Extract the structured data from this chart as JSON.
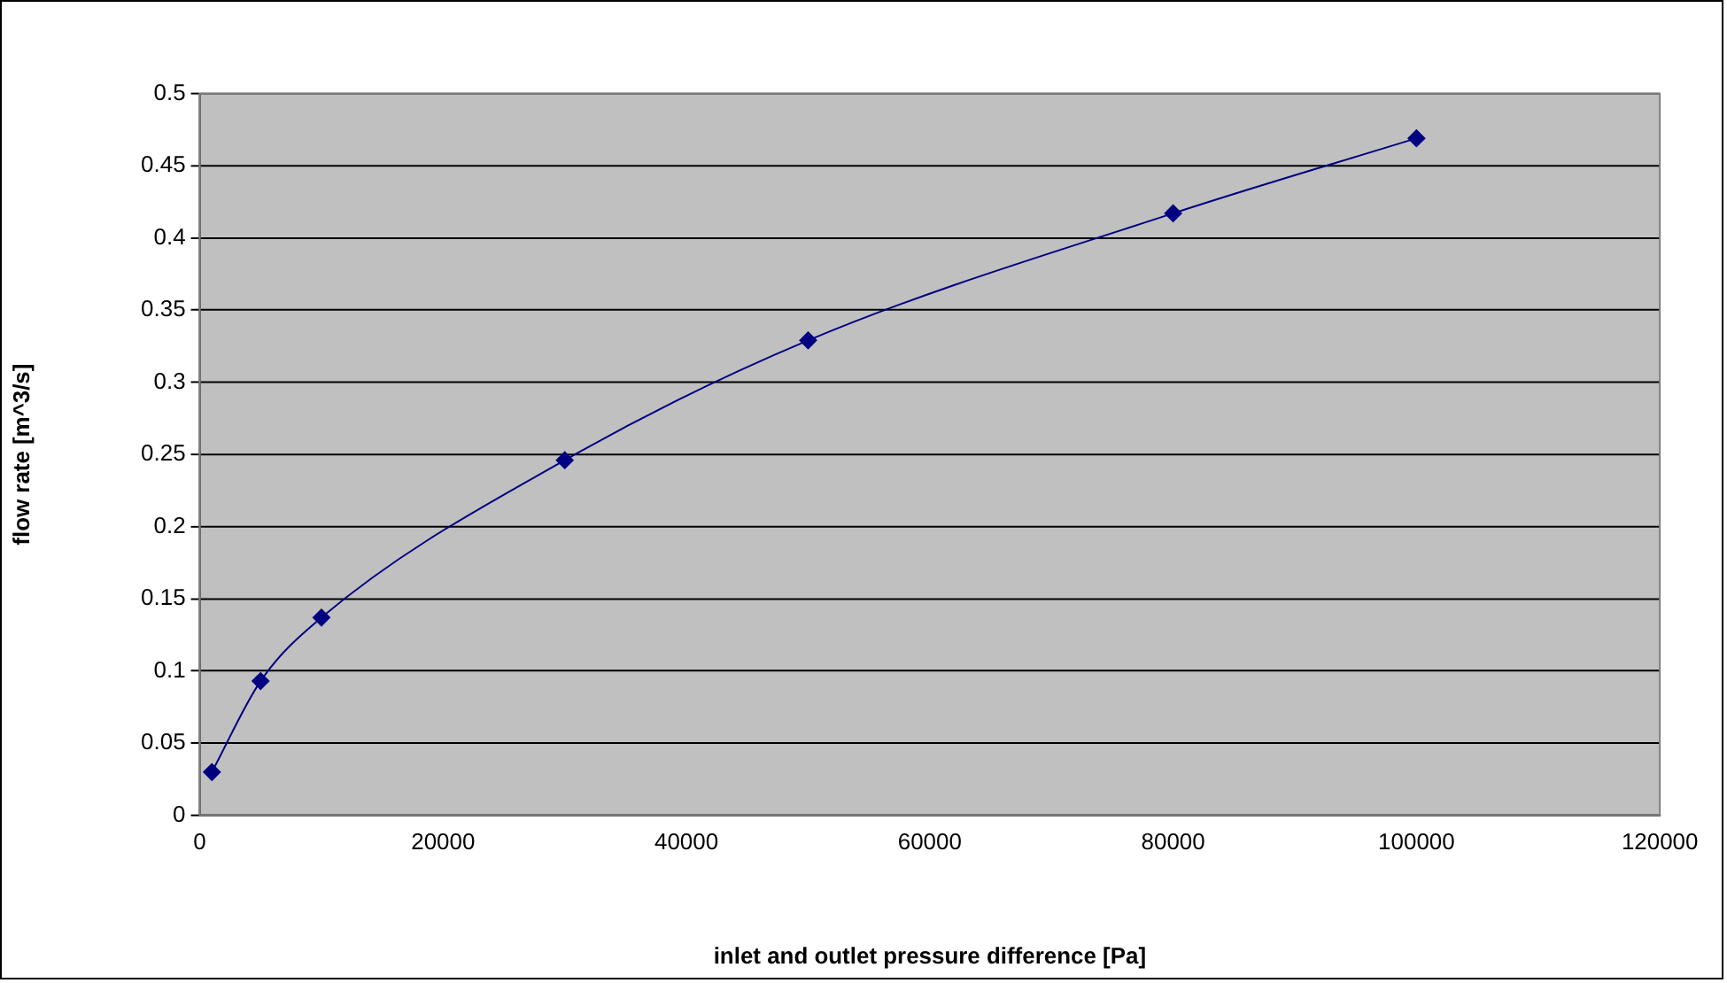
{
  "chart_data": {
    "type": "line",
    "xlabel": "inlet and outlet pressure difference [Pa]",
    "ylabel": "flow rate [m^3/s]",
    "x": [
      1000,
      5000,
      10000,
      30000,
      50000,
      80000,
      100000
    ],
    "series": [
      {
        "color": "#000080",
        "values": [
          0.03,
          0.093,
          0.137,
          0.246,
          0.329,
          0.417,
          0.469
        ]
      }
    ],
    "xlim": [
      0,
      120000
    ],
    "xticks": [
      0,
      20000,
      40000,
      60000,
      80000,
      100000,
      120000
    ],
    "ylim": [
      0,
      0.5
    ],
    "yticks": [
      0,
      0.05,
      0.1,
      0.15,
      0.2,
      0.25,
      0.3,
      0.35,
      0.4,
      0.45,
      0.5
    ],
    "grid": "y",
    "legend": false,
    "marker": "diamond",
    "line_style": "solid"
  }
}
